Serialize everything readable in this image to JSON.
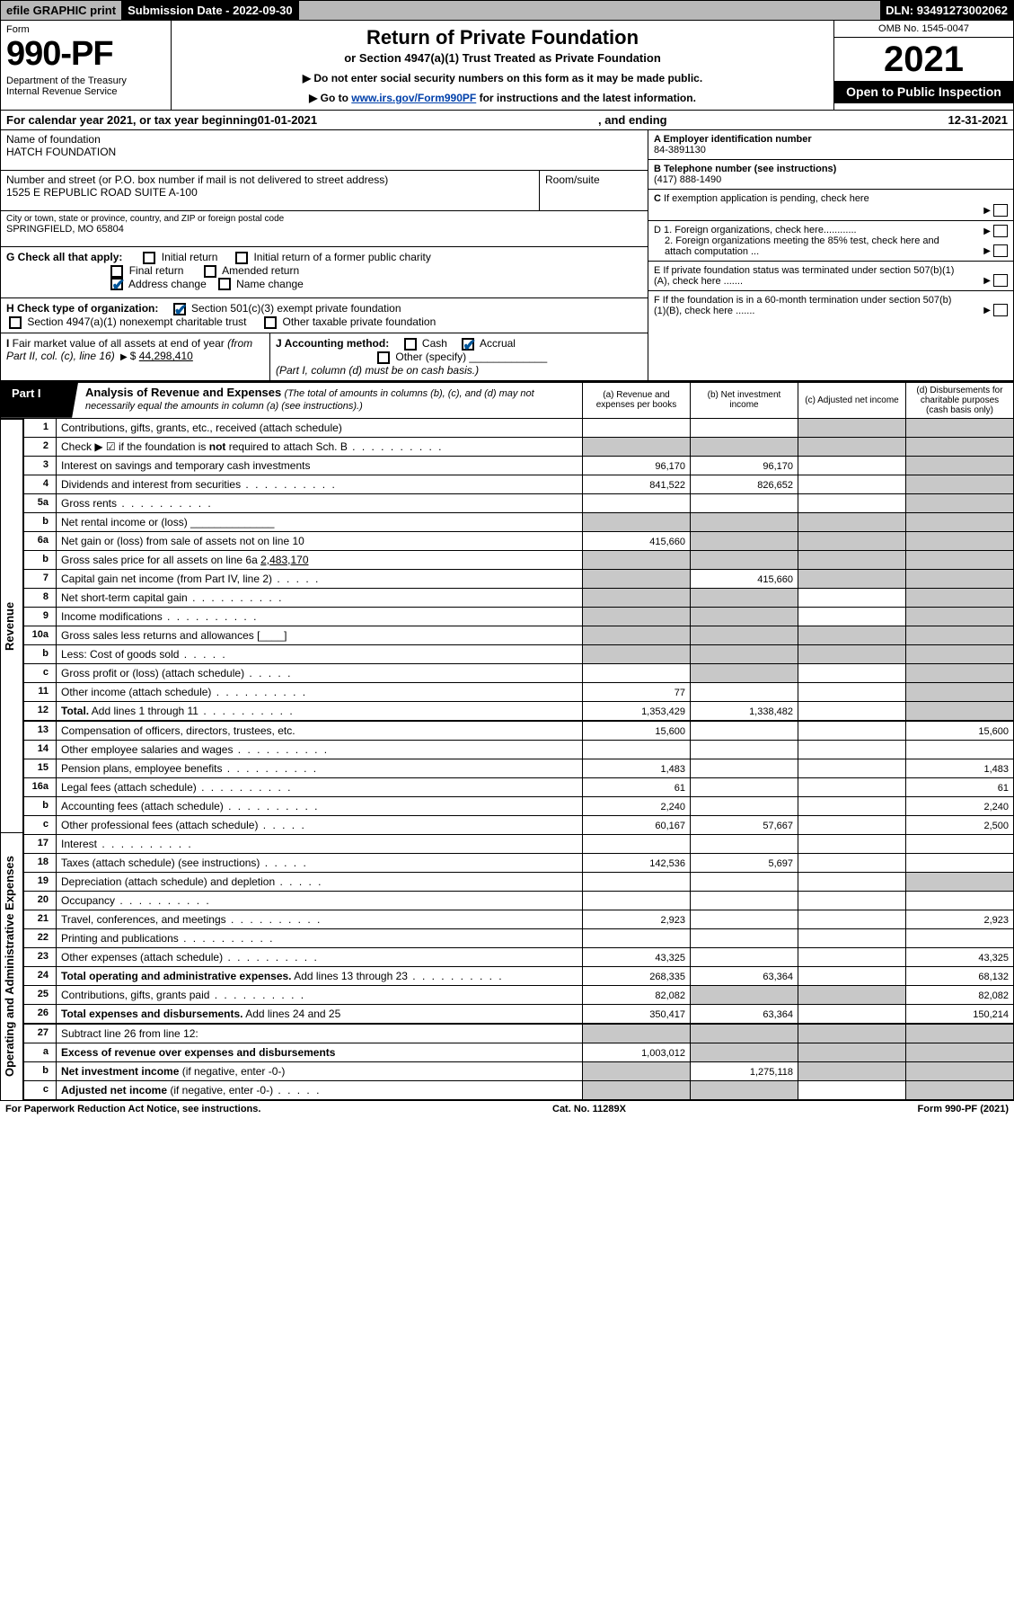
{
  "topbar": {
    "efile": "efile GRAPHIC print",
    "subdate_label": "Submission Date - ",
    "subdate": "2022-09-30",
    "dln_label": "DLN: ",
    "dln": "93491273002062"
  },
  "header": {
    "form_word": "Form",
    "form_no": "990-PF",
    "dept": "Department of the Treasury\nInternal Revenue Service",
    "title": "Return of Private Foundation",
    "subtitle": "or Section 4947(a)(1) Trust Treated as Private Foundation",
    "note1": "▶ Do not enter social security numbers on this form as it may be made public.",
    "note2_pre": "▶ Go to ",
    "note2_link": "www.irs.gov/Form990PF",
    "note2_post": " for instructions and the latest information.",
    "omb": "OMB No. 1545-0047",
    "year": "2021",
    "inspect": "Open to Public Inspection"
  },
  "calyear": {
    "text_pre": "For calendar year 2021, or tax year beginning ",
    "begin": "01-01-2021",
    "mid": ", and ending ",
    "end": "12-31-2021"
  },
  "info": {
    "name_lbl": "Name of foundation",
    "name": "HATCH FOUNDATION",
    "addr_lbl": "Number and street (or P.O. box number if mail is not delivered to street address)",
    "addr": "1525 E REPUBLIC ROAD SUITE A-100",
    "room_lbl": "Room/suite",
    "room": "",
    "city_lbl": "City or town, state or province, country, and ZIP or foreign postal code",
    "city": "SPRINGFIELD, MO  65804",
    "ein_lbl": "A Employer identification number",
    "ein": "84-3891130",
    "tel_lbl": "B Telephone number (see instructions)",
    "tel": "(417) 888-1490",
    "c_lbl": "C If exemption application is pending, check here",
    "d1": "D 1. Foreign organizations, check here............",
    "d2": "2. Foreign organizations meeting the 85% test, check here and attach computation ...",
    "e": "E  If private foundation status was terminated under section 507(b)(1)(A), check here .......",
    "f": "F  If the foundation is in a 60-month termination under section 507(b)(1)(B), check here .......",
    "g_lbl": "G Check all that apply:",
    "g_opts": [
      "Initial return",
      "Initial return of a former public charity",
      "Final return",
      "Amended return",
      "Address change",
      "Name change"
    ],
    "h_lbl": "H Check type of organization:",
    "h_opts": [
      "Section 501(c)(3) exempt private foundation",
      "Section 4947(a)(1) nonexempt charitable trust",
      "Other taxable private foundation"
    ],
    "i_lbl": "I Fair market value of all assets at end of year (from Part II, col. (c), line 16)",
    "i_val": "44,298,410",
    "j_lbl": "J Accounting method:",
    "j_opts": [
      "Cash",
      "Accrual"
    ],
    "j_other": "Other (specify)",
    "j_note": "(Part I, column (d) must be on cash basis.)"
  },
  "part1": {
    "tab": "Part I",
    "title": "Analysis of Revenue and Expenses",
    "note": "(The total of amounts in columns (b), (c), and (d) may not necessarily equal the amounts in column (a) (see instructions).)",
    "cols": {
      "a": "(a) Revenue and expenses per books",
      "b": "(b) Net investment income",
      "c": "(c) Adjusted net income",
      "d": "(d) Disbursements for charitable purposes (cash basis only)"
    }
  },
  "side": {
    "revenue": "Revenue",
    "expenses": "Operating and Administrative Expenses"
  },
  "rows": [
    {
      "n": "1",
      "d": "Contributions, gifts, grants, etc., received (attach schedule)",
      "a": "",
      "b": "",
      "c": "s",
      "dd": "s"
    },
    {
      "n": "2",
      "d": "Check ▶ ☑ if the foundation is <b>not</b> required to attach Sch. B",
      "dots": true,
      "a": "s",
      "b": "s",
      "c": "s",
      "dd": "s"
    },
    {
      "n": "3",
      "d": "Interest on savings and temporary cash investments",
      "a": "96,170",
      "b": "96,170",
      "c": "",
      "dd": "s"
    },
    {
      "n": "4",
      "d": "Dividends and interest from securities",
      "dots": true,
      "a": "841,522",
      "b": "826,652",
      "c": "",
      "dd": "s"
    },
    {
      "n": "5a",
      "d": "Gross rents",
      "dots": true,
      "a": "",
      "b": "",
      "c": "",
      "dd": "s"
    },
    {
      "n": "b",
      "d": "Net rental income or (loss) ______________",
      "a": "s",
      "b": "s",
      "c": "s",
      "dd": "s"
    },
    {
      "n": "6a",
      "d": "Net gain or (loss) from sale of assets not on line 10",
      "a": "415,660",
      "b": "s",
      "c": "s",
      "dd": "s"
    },
    {
      "n": "b",
      "d": "Gross sales price for all assets on line 6a <span class='underline'>        2,483,170</span>",
      "a": "s",
      "b": "s",
      "c": "s",
      "dd": "s"
    },
    {
      "n": "7",
      "d": "Capital gain net income (from Part IV, line 2)",
      "dots": "sm",
      "a": "s",
      "b": "415,660",
      "c": "s",
      "dd": "s"
    },
    {
      "n": "8",
      "d": "Net short-term capital gain",
      "dots": true,
      "a": "s",
      "b": "s",
      "c": "",
      "dd": "s"
    },
    {
      "n": "9",
      "d": "Income modifications",
      "dots": true,
      "a": "s",
      "b": "s",
      "c": "",
      "dd": "s"
    },
    {
      "n": "10a",
      "d": "Gross sales less returns and allowances  [____]",
      "a": "s",
      "b": "s",
      "c": "s",
      "dd": "s"
    },
    {
      "n": "b",
      "d": "Less: Cost of goods sold",
      "dots": "sm",
      "a": "s",
      "b": "s",
      "c": "s",
      "dd": "s"
    },
    {
      "n": "c",
      "d": "Gross profit or (loss) (attach schedule)",
      "dots": "sm",
      "a": "",
      "b": "s",
      "c": "",
      "dd": "s"
    },
    {
      "n": "11",
      "d": "Other income (attach schedule)",
      "dots": true,
      "a": "77",
      "b": "",
      "c": "",
      "dd": "s"
    },
    {
      "n": "12",
      "d": "<b>Total.</b> Add lines 1 through 11",
      "dots": true,
      "a": "1,353,429",
      "b": "1,338,482",
      "c": "",
      "dd": "s",
      "bold": true
    },
    {
      "n": "13",
      "d": "Compensation of officers, directors, trustees, etc.",
      "a": "15,600",
      "b": "",
      "c": "",
      "dd": "15,600",
      "sec": "exp"
    },
    {
      "n": "14",
      "d": "Other employee salaries and wages",
      "dots": true,
      "a": "",
      "b": "",
      "c": "",
      "dd": ""
    },
    {
      "n": "15",
      "d": "Pension plans, employee benefits",
      "dots": true,
      "a": "1,483",
      "b": "",
      "c": "",
      "dd": "1,483"
    },
    {
      "n": "16a",
      "d": "Legal fees (attach schedule)",
      "dots": true,
      "a": "61",
      "b": "",
      "c": "",
      "dd": "61"
    },
    {
      "n": "b",
      "d": "Accounting fees (attach schedule)",
      "dots": true,
      "a": "2,240",
      "b": "",
      "c": "",
      "dd": "2,240"
    },
    {
      "n": "c",
      "d": "Other professional fees (attach schedule)",
      "dots": "sm",
      "a": "60,167",
      "b": "57,667",
      "c": "",
      "dd": "2,500"
    },
    {
      "n": "17",
      "d": "Interest",
      "dots": true,
      "a": "",
      "b": "",
      "c": "",
      "dd": ""
    },
    {
      "n": "18",
      "d": "Taxes (attach schedule) (see instructions)",
      "dots": "sm",
      "a": "142,536",
      "b": "5,697",
      "c": "",
      "dd": ""
    },
    {
      "n": "19",
      "d": "Depreciation (attach schedule) and depletion",
      "dots": "sm",
      "a": "",
      "b": "",
      "c": "",
      "dd": "s"
    },
    {
      "n": "20",
      "d": "Occupancy",
      "dots": true,
      "a": "",
      "b": "",
      "c": "",
      "dd": ""
    },
    {
      "n": "21",
      "d": "Travel, conferences, and meetings",
      "dots": true,
      "a": "2,923",
      "b": "",
      "c": "",
      "dd": "2,923"
    },
    {
      "n": "22",
      "d": "Printing and publications",
      "dots": true,
      "a": "",
      "b": "",
      "c": "",
      "dd": ""
    },
    {
      "n": "23",
      "d": "Other expenses (attach schedule)",
      "dots": true,
      "a": "43,325",
      "b": "",
      "c": "",
      "dd": "43,325"
    },
    {
      "n": "24",
      "d": "<b>Total operating and administrative expenses.</b> Add lines 13 through 23",
      "dots": true,
      "a": "268,335",
      "b": "63,364",
      "c": "",
      "dd": "68,132",
      "bold": true
    },
    {
      "n": "25",
      "d": "Contributions, gifts, grants paid",
      "dots": true,
      "a": "82,082",
      "b": "s",
      "c": "s",
      "dd": "82,082"
    },
    {
      "n": "26",
      "d": "<b>Total expenses and disbursements.</b> Add lines 24 and 25",
      "a": "350,417",
      "b": "63,364",
      "c": "",
      "dd": "150,214",
      "bold": true
    },
    {
      "n": "27",
      "d": "Subtract line 26 from line 12:",
      "a": "s",
      "b": "s",
      "c": "s",
      "dd": "s",
      "sec": "final"
    },
    {
      "n": "a",
      "d": "<b>Excess of revenue over expenses and disbursements</b>",
      "a": "1,003,012",
      "b": "s",
      "c": "s",
      "dd": "s"
    },
    {
      "n": "b",
      "d": "<b>Net investment income</b> (if negative, enter -0-)",
      "a": "s",
      "b": "1,275,118",
      "c": "s",
      "dd": "s"
    },
    {
      "n": "c",
      "d": "<b>Adjusted net income</b> (if negative, enter -0-)",
      "dots": "sm",
      "a": "s",
      "b": "s",
      "c": "",
      "dd": "s"
    }
  ],
  "footer": {
    "left": "For Paperwork Reduction Act Notice, see instructions.",
    "mid": "Cat. No. 11289X",
    "right": "Form 990-PF (2021)"
  },
  "colors": {
    "shade": "#c8c8c8",
    "link": "#0040aa",
    "topbar_gray": "#b8b8b8"
  }
}
